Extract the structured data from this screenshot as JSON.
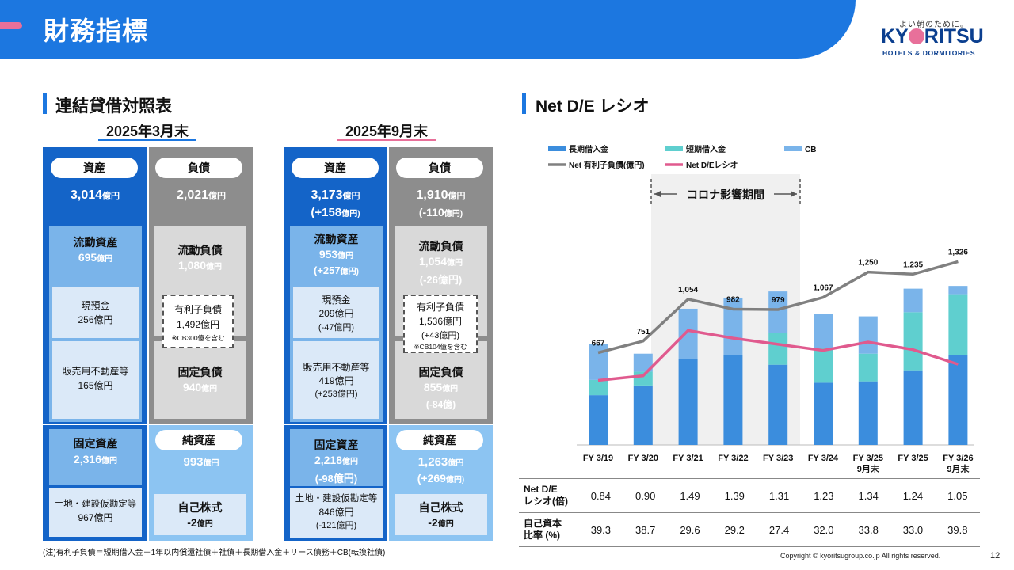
{
  "header": {
    "title": "財務指標",
    "logo_tagline": "よい朝のために。",
    "logo_name_part1": "KY",
    "logo_name_part2": "RITSU",
    "logo_sub": "HOTELS & DORMITORIES"
  },
  "bs": {
    "title": "連結貸借対照表",
    "march": {
      "date": "2025年3月末",
      "assets_label": "資産",
      "assets_value": "3,014",
      "assets_unit": "億円",
      "liab_label": "負債",
      "liab_value": "2,021",
      "liab_unit": "億円",
      "current_assets_label": "流動資産",
      "current_assets_value": "695",
      "current_assets_unit": "億円",
      "cash_label": "現預金",
      "cash_value": "256億円",
      "re_label": "販売用不動産等",
      "re_value": "165億円",
      "current_liab_label": "流動負債",
      "current_liab_value": "1,080",
      "current_liab_unit": "億円",
      "debt_label": "有利子負債",
      "debt_value": "1,492億円",
      "debt_note": "※CB300億を含む",
      "fixed_liab_label": "固定負債",
      "fixed_liab_value": "940",
      "fixed_liab_unit": "億円",
      "fixed_assets_label": "固定資産",
      "fixed_assets_value": "2,316",
      "fixed_assets_unit": "億円",
      "land_label": "土地・建設仮勘定等",
      "land_value": "967億円",
      "equity_label": "純資産",
      "equity_value": "993",
      "equity_unit": "億円",
      "treasury_label": "自己株式",
      "treasury_value": "-2",
      "treasury_unit": "億円"
    },
    "sept": {
      "date": "2025年9月末",
      "assets_label": "資産",
      "assets_value": "3,173",
      "assets_unit": "億円",
      "assets_change": "(+158",
      "assets_change_unit": "億円)",
      "liab_label": "負債",
      "liab_value": "1,910",
      "liab_unit": "億円",
      "liab_change": "(-110",
      "liab_change_unit": "億円)",
      "current_assets_label": "流動資産",
      "current_assets_value": "953",
      "current_assets_unit": "億円",
      "current_assets_change": "(+257",
      "current_assets_change_unit": "億円)",
      "cash_label": "現預金",
      "cash_value": "209億円",
      "cash_change": "(-47億円)",
      "re_label": "販売用不動産等",
      "re_value": "419億円",
      "re_change": "(+253億円)",
      "current_liab_label": "流動負債",
      "current_liab_value": "1,054",
      "current_liab_unit": "億円",
      "current_liab_change": "(-26億円)",
      "debt_label": "有利子負債",
      "debt_value": "1,536億円",
      "debt_change": "(+43億円)",
      "debt_note": "※CB104億を含む",
      "fixed_liab_label": "固定負債",
      "fixed_liab_value": "855",
      "fixed_liab_unit": "億円",
      "fixed_liab_change": "(-84億)",
      "fixed_assets_label": "固定資産",
      "fixed_assets_value": "2,218",
      "fixed_assets_unit": "億円",
      "fixed_assets_change": "(-98億円)",
      "land_label": "土地・建設仮勘定等",
      "land_value": "846億円",
      "land_change": "(-121億円)",
      "equity_label": "純資産",
      "equity_value": "1,263",
      "equity_unit": "億円",
      "equity_change": "(+269",
      "equity_change_unit": "億円)",
      "treasury_label": "自己株式",
      "treasury_value": "-2",
      "treasury_unit": "億円"
    },
    "footnote": "(注)有利子負債＝短期借入金＋1年以内償還社債＋社債＋長期借入金＋リース債務＋CB(転換社債)"
  },
  "de": {
    "title": "Net D/E レシオ",
    "corona_label": "コロナ影響期間"
  },
  "chart_data": {
    "type": "bar",
    "categories": [
      "FY 3/19",
      "FY 3/20",
      "FY 3/21",
      "FY 3/22",
      "FY 3/23",
      "FY 3/24",
      "FY 3/25\n9月末",
      "FY 3/25",
      "FY 3/26\n9月末"
    ],
    "series": [
      {
        "name": "長期借入金",
        "kind": "stacked-bar",
        "color": "#3b8ddd",
        "values": [
          360,
          430,
          620,
          650,
          580,
          450,
          460,
          540,
          650
        ]
      },
      {
        "name": "短期借入金",
        "kind": "stacked-bar",
        "color": "#5fcfcf",
        "values": [
          110,
          100,
          0,
          0,
          230,
          250,
          200,
          420,
          440
        ]
      },
      {
        "name": "CB",
        "kind": "stacked-bar",
        "color": "#7ab4ea",
        "values": [
          260,
          130,
          365,
          415,
          300,
          250,
          270,
          170,
          60
        ]
      },
      {
        "name": "Net 有利子負債(億円)",
        "kind": "line",
        "color": "#808080",
        "values": [
          667,
          751,
          1054,
          982,
          979,
          1067,
          1250,
          1235,
          1326
        ]
      },
      {
        "name": "Net D/Eレシオ",
        "kind": "line",
        "color": "#e05a8e",
        "values": [
          0.84,
          0.9,
          1.49,
          1.39,
          1.31,
          1.23,
          1.34,
          1.24,
          1.05
        ]
      }
    ],
    "ylim": [
      0,
      1500
    ],
    "ratio_lim": [
      0,
      2.7
    ],
    "corona_period": [
      "FY 3/21",
      "FY 3/23"
    ],
    "legend": "top-left",
    "table": {
      "rows": [
        {
          "label_line1": "Net  D/E",
          "label_line2": "レシオ(倍)",
          "values": [
            "0.84",
            "0.90",
            "1.49",
            "1.39",
            "1.31",
            "1.23",
            "1.34",
            "1.24",
            "1.05"
          ]
        },
        {
          "label_line1": "自己資本",
          "label_line2": "比率 (%)",
          "values": [
            "39.3",
            "38.7",
            "29.6",
            "29.2",
            "27.4",
            "32.0",
            "33.8",
            "33.0",
            "39.8"
          ]
        }
      ]
    }
  },
  "footer": {
    "copyright": "Copyright © kyoritsugroup.co.jp All rights reserved.",
    "page": "12"
  }
}
